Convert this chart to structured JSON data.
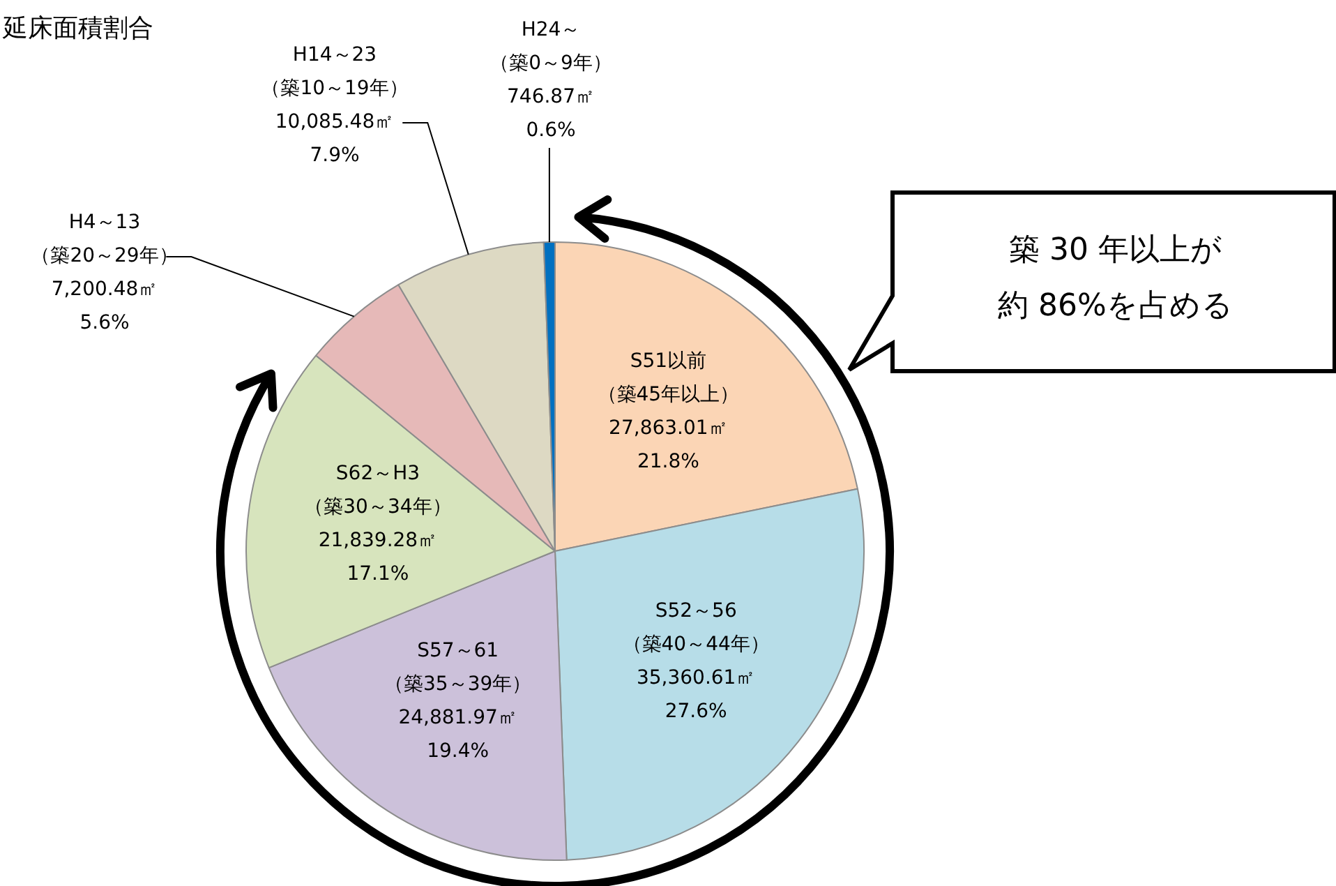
{
  "chart_data": {
    "type": "pie",
    "title": "延床面積割合",
    "categories": [
      "S51以前（築45年以上）",
      "S52～56（築40～44年）",
      "S57～61（築35～39年）",
      "S62～H3（築30～34年）",
      "H4～13（築20～29年）",
      "H14～23（築10～19年）",
      "H24～（築0～9年）"
    ],
    "values": [
      27863.01,
      35360.61,
      24881.97,
      21839.28,
      7200.48,
      10085.48,
      746.87
    ],
    "colors": [
      "#fbd5b5",
      "#b7dde8",
      "#ccc1da",
      "#d7e4bd",
      "#e6b9b8",
      "#ddd9c3",
      "#0070c0"
    ],
    "value_labels": [
      "27,863.01㎡21.8%",
      "35,360.61㎡27.6%",
      "24,881.97㎡19.4%",
      "21,839.28㎡17.1%",
      "7,200.48㎡5.6%",
      "10,085.48㎡7.9%",
      "746.87㎡0.6%"
    ],
    "annotations": [
      "築 30 年以上が約 86%を占める"
    ],
    "legend": false
  }
}
